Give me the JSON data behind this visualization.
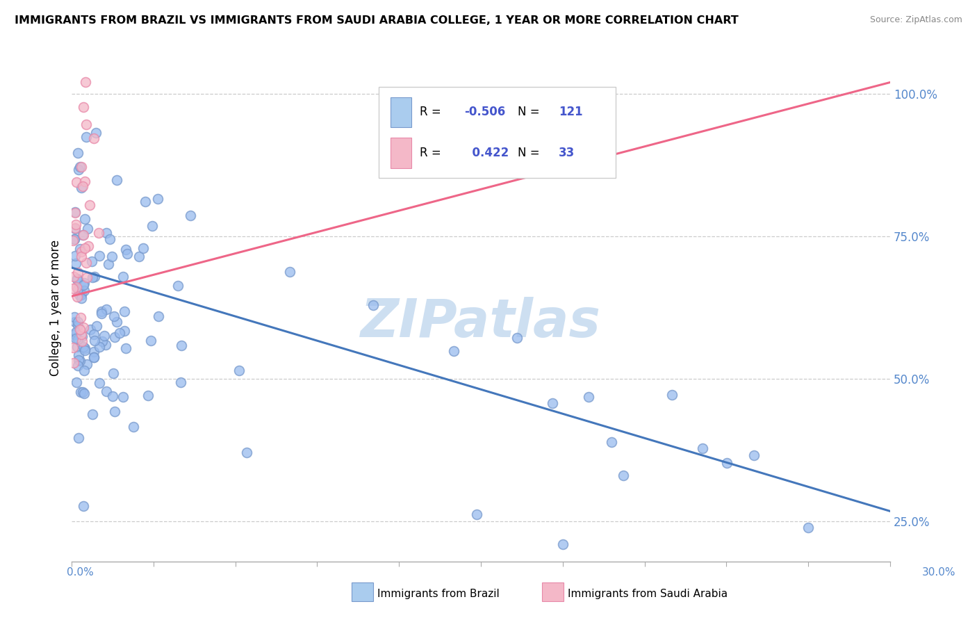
{
  "title": "IMMIGRANTS FROM BRAZIL VS IMMIGRANTS FROM SAUDI ARABIA COLLEGE, 1 YEAR OR MORE CORRELATION CHART",
  "source": "Source: ZipAtlas.com",
  "ylabel": "College, 1 year or more",
  "y_ticks": [
    0.25,
    0.5,
    0.75,
    1.0
  ],
  "y_tick_labels": [
    "25.0%",
    "50.0%",
    "75.0%",
    "100.0%"
  ],
  "x_min": 0.0,
  "x_max": 0.3,
  "y_min": 0.18,
  "y_max": 1.07,
  "brazil_R": -0.506,
  "brazil_N": 121,
  "saudi_R": 0.422,
  "saudi_N": 33,
  "brazil_dot_color": "#99bbee",
  "brazil_dot_edge": "#7799cc",
  "saudi_dot_color": "#f4b8c8",
  "saudi_dot_edge": "#e888a8",
  "brazil_line_color": "#4477bb",
  "saudi_line_color": "#ee6688",
  "legend_swatch_brazil": "#aaccee",
  "legend_swatch_saudi": "#f4b8c8",
  "legend_R_color": "#4455cc",
  "watermark_color": "#c8dcf0",
  "brazil_line_x0": 0.0,
  "brazil_line_y0": 0.695,
  "brazil_line_x1": 0.3,
  "brazil_line_y1": 0.268,
  "saudi_line_x0": 0.0,
  "saudi_line_y0": 0.645,
  "saudi_line_x1": 0.3,
  "saudi_line_y1": 1.02
}
